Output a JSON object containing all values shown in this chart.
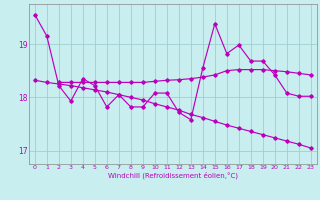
{
  "title": "",
  "xlabel": "Windchill (Refroidissement éolien,°C)",
  "ylabel": "",
  "bg_color": "#c8eef0",
  "grid_color": "#9ecfcf",
  "line_color": "#bb00bb",
  "xlim": [
    -0.5,
    23.5
  ],
  "ylim": [
    16.75,
    19.75
  ],
  "yticks": [
    17,
    18,
    19
  ],
  "xticks": [
    0,
    1,
    2,
    3,
    4,
    5,
    6,
    7,
    8,
    9,
    10,
    11,
    12,
    13,
    14,
    15,
    16,
    17,
    18,
    19,
    20,
    21,
    22,
    23
  ],
  "line1_x": [
    0,
    1,
    2,
    3,
    4,
    5,
    6,
    7,
    8,
    9,
    10,
    11,
    12,
    13,
    14,
    15,
    16,
    17,
    18,
    19,
    20,
    21,
    22,
    23
  ],
  "line1_y": [
    19.55,
    19.15,
    18.22,
    17.93,
    18.35,
    18.22,
    17.82,
    18.05,
    17.82,
    17.82,
    18.08,
    18.08,
    17.72,
    17.58,
    18.55,
    19.38,
    18.82,
    18.98,
    18.68,
    18.68,
    18.42,
    18.08,
    18.02,
    18.02
  ],
  "line2_x": [
    2,
    3,
    4,
    5,
    6,
    7,
    8,
    9,
    10,
    11,
    12,
    13,
    14,
    15,
    16,
    17,
    18,
    19,
    20,
    21,
    22,
    23
  ],
  "line2_y": [
    18.28,
    18.28,
    18.28,
    18.28,
    18.28,
    18.28,
    18.28,
    18.28,
    18.3,
    18.32,
    18.33,
    18.35,
    18.38,
    18.42,
    18.5,
    18.52,
    18.52,
    18.52,
    18.5,
    18.48,
    18.45,
    18.42
  ],
  "line3_x": [
    0,
    1,
    2,
    3,
    4,
    5,
    6,
    7,
    8,
    9,
    10,
    11,
    12,
    13,
    14,
    15,
    16,
    17,
    18,
    19,
    20,
    21,
    22,
    23
  ],
  "line3_y": [
    18.32,
    18.28,
    18.25,
    18.22,
    18.18,
    18.14,
    18.1,
    18.05,
    18.0,
    17.95,
    17.88,
    17.82,
    17.76,
    17.68,
    17.62,
    17.55,
    17.48,
    17.42,
    17.36,
    17.3,
    17.24,
    17.18,
    17.12,
    17.05
  ]
}
